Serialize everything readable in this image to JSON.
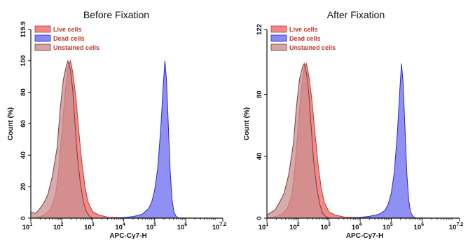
{
  "chart_data": [
    {
      "type": "area",
      "title": "Before Fixation",
      "xlabel": "APC-Cy7-H",
      "ylabel": "Count  (%)",
      "x_scale": "log",
      "xlim_log10": [
        1,
        7.2
      ],
      "x_ticks": [
        {
          "base": "10",
          "exp": "1",
          "log": 1
        },
        {
          "base": "10",
          "exp": "2",
          "log": 2
        },
        {
          "base": "10",
          "exp": "3",
          "log": 3
        },
        {
          "base": "10",
          "exp": "4",
          "log": 4
        },
        {
          "base": "10",
          "exp": "5",
          "log": 5
        },
        {
          "base": "10",
          "exp": "6",
          "log": 6
        },
        {
          "base": "10",
          "exp": "7.2",
          "log": 7.2
        }
      ],
      "ylim": [
        0,
        119.9
      ],
      "y_ticks": [
        "0",
        "20",
        "40",
        "60",
        "80",
        "100",
        "119.9"
      ],
      "y_tick_values": [
        0,
        20,
        40,
        60,
        80,
        100,
        119.9
      ],
      "legend": [
        {
          "label": "Live cells",
          "color": "#f06a6a"
        },
        {
          "label": "Dead cells",
          "color": "#6a6af0"
        },
        {
          "label": "Unstained cells",
          "color": "#c98f8f"
        }
      ],
      "series": [
        {
          "name": "Live cells",
          "color": "#f06a6a",
          "points": [
            [
              1.0,
              0
            ],
            [
              1.3,
              1
            ],
            [
              1.5,
              3
            ],
            [
              1.65,
              6
            ],
            [
              1.8,
              15
            ],
            [
              1.9,
              30
            ],
            [
              2.0,
              55
            ],
            [
              2.1,
              78
            ],
            [
              2.2,
              96
            ],
            [
              2.28,
              100
            ],
            [
              2.35,
              93
            ],
            [
              2.45,
              78
            ],
            [
              2.55,
              55
            ],
            [
              2.65,
              35
            ],
            [
              2.75,
              20
            ],
            [
              2.85,
              10
            ],
            [
              3.0,
              4
            ],
            [
              3.2,
              2
            ],
            [
              3.5,
              0.6
            ],
            [
              4.0,
              0.3
            ],
            [
              7.2,
              0
            ]
          ]
        },
        {
          "name": "Unstained cells",
          "color": "#c98f8f",
          "points": [
            [
              1.0,
              0
            ],
            [
              1.0,
              4
            ],
            [
              1.15,
              3
            ],
            [
              1.25,
              5
            ],
            [
              1.4,
              9
            ],
            [
              1.55,
              15
            ],
            [
              1.7,
              27
            ],
            [
              1.85,
              45
            ],
            [
              1.95,
              70
            ],
            [
              2.05,
              88
            ],
            [
              2.15,
              97
            ],
            [
              2.2,
              100
            ],
            [
              2.28,
              94
            ],
            [
              2.35,
              82
            ],
            [
              2.42,
              62
            ],
            [
              2.5,
              40
            ],
            [
              2.6,
              22
            ],
            [
              2.7,
              10
            ],
            [
              2.8,
              4
            ],
            [
              2.9,
              1
            ],
            [
              3.0,
              0
            ],
            [
              7.2,
              0
            ]
          ]
        },
        {
          "name": "Dead cells",
          "color": "#6a6af0",
          "points": [
            [
              1.0,
              0
            ],
            [
              3.7,
              0
            ],
            [
              4.0,
              0.4
            ],
            [
              4.3,
              1
            ],
            [
              4.6,
              2.5
            ],
            [
              4.8,
              6
            ],
            [
              4.9,
              10
            ],
            [
              5.0,
              18
            ],
            [
              5.1,
              32
            ],
            [
              5.2,
              58
            ],
            [
              5.28,
              85
            ],
            [
              5.33,
              100
            ],
            [
              5.38,
              88
            ],
            [
              5.44,
              60
            ],
            [
              5.5,
              30
            ],
            [
              5.56,
              12
            ],
            [
              5.62,
              4
            ],
            [
              5.7,
              1
            ],
            [
              5.8,
              0
            ],
            [
              7.2,
              0
            ]
          ]
        }
      ]
    },
    {
      "type": "area",
      "title": "After Fixation",
      "xlabel": "APC-Cy7-H",
      "ylabel": "Count  (%)",
      "x_scale": "log",
      "xlim_log10": [
        1,
        7.2
      ],
      "x_ticks": [
        {
          "base": "10",
          "exp": "1",
          "log": 1
        },
        {
          "base": "10",
          "exp": "2",
          "log": 2
        },
        {
          "base": "10",
          "exp": "3",
          "log": 3
        },
        {
          "base": "10",
          "exp": "4",
          "log": 4
        },
        {
          "base": "10",
          "exp": "5",
          "log": 5
        },
        {
          "base": "10",
          "exp": "6",
          "log": 6
        },
        {
          "base": "10",
          "exp": "7.2",
          "log": 7.2
        }
      ],
      "ylim": [
        0,
        122
      ],
      "y_ticks": [
        "0",
        "40",
        "80",
        "122"
      ],
      "y_tick_values": [
        0,
        40,
        80,
        122
      ],
      "legend": [
        {
          "label": "Live cells",
          "color": "#f06a6a"
        },
        {
          "label": "Dead cells",
          "color": "#6a6af0"
        },
        {
          "label": "Unstained cells",
          "color": "#c98f8f"
        }
      ],
      "series": [
        {
          "name": "Live cells",
          "color": "#f06a6a",
          "points": [
            [
              1.0,
              0
            ],
            [
              1.3,
              1
            ],
            [
              1.5,
              3
            ],
            [
              1.65,
              6
            ],
            [
              1.8,
              15
            ],
            [
              1.9,
              32
            ],
            [
              2.0,
              58
            ],
            [
              2.1,
              82
            ],
            [
              2.2,
              97
            ],
            [
              2.27,
              100
            ],
            [
              2.35,
              92
            ],
            [
              2.45,
              76
            ],
            [
              2.55,
              54
            ],
            [
              2.65,
              34
            ],
            [
              2.75,
              19
            ],
            [
              2.85,
              10
            ],
            [
              3.0,
              4
            ],
            [
              3.2,
              2
            ],
            [
              3.5,
              0.7
            ],
            [
              4.0,
              0.3
            ],
            [
              7.2,
              0
            ]
          ]
        },
        {
          "name": "Unstained cells",
          "color": "#c98f8f",
          "points": [
            [
              1.0,
              0
            ],
            [
              1.0,
              2
            ],
            [
              1.15,
              4
            ],
            [
              1.25,
              5
            ],
            [
              1.4,
              10
            ],
            [
              1.55,
              16
            ],
            [
              1.7,
              28
            ],
            [
              1.85,
              48
            ],
            [
              1.95,
              72
            ],
            [
              2.05,
              90
            ],
            [
              2.15,
              98
            ],
            [
              2.2,
              100
            ],
            [
              2.28,
              93
            ],
            [
              2.35,
              80
            ],
            [
              2.42,
              60
            ],
            [
              2.5,
              38
            ],
            [
              2.6,
              20
            ],
            [
              2.7,
              9
            ],
            [
              2.8,
              3
            ],
            [
              2.9,
              1
            ],
            [
              3.0,
              0
            ],
            [
              7.2,
              0
            ]
          ]
        },
        {
          "name": "Dead cells",
          "color": "#6a6af0",
          "points": [
            [
              1.0,
              0
            ],
            [
              3.7,
              0
            ],
            [
              4.0,
              0.5
            ],
            [
              4.3,
              1.2
            ],
            [
              4.6,
              2.5
            ],
            [
              4.8,
              5
            ],
            [
              4.9,
              9
            ],
            [
              5.0,
              16
            ],
            [
              5.1,
              30
            ],
            [
              5.2,
              56
            ],
            [
              5.28,
              84
            ],
            [
              5.33,
              100
            ],
            [
              5.38,
              88
            ],
            [
              5.44,
              60
            ],
            [
              5.5,
              30
            ],
            [
              5.56,
              12
            ],
            [
              5.62,
              4
            ],
            [
              5.7,
              1
            ],
            [
              5.8,
              0
            ],
            [
              7.2,
              0
            ]
          ]
        }
      ]
    }
  ]
}
